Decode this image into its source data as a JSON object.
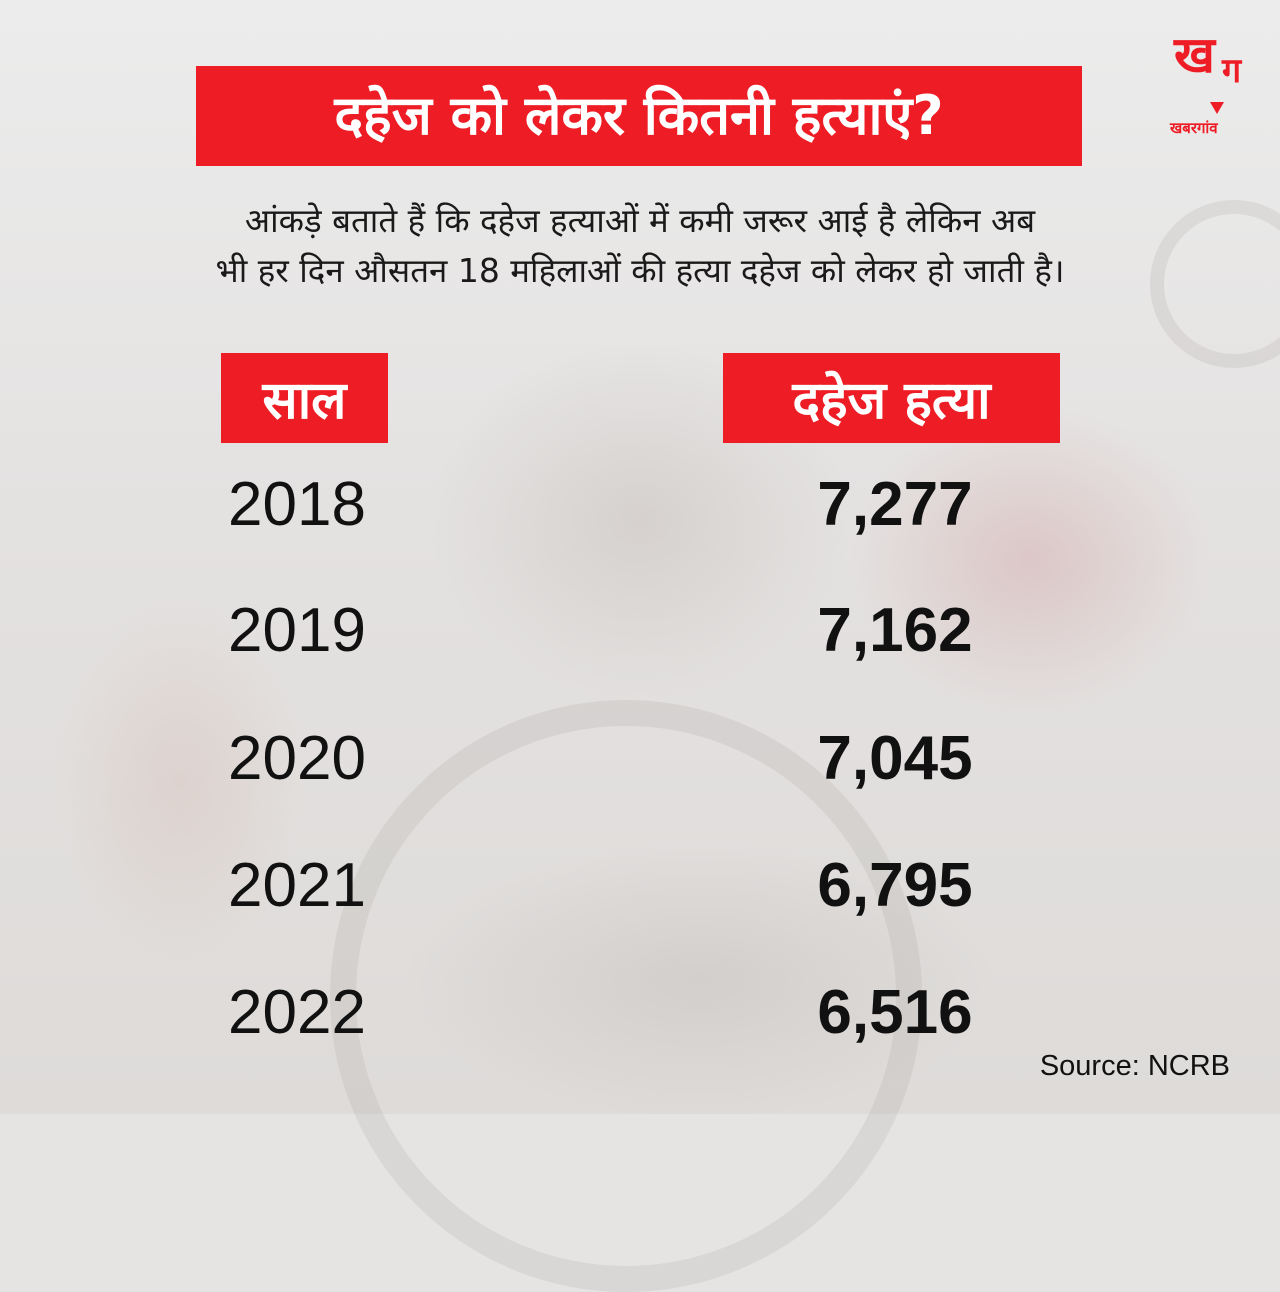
{
  "title": "दहेज को लेकर कितनी हत्याएं?",
  "subtitle_line1": "आंकड़े बताते हैं कि दहेज हत्याओं में कमी जरूर आई है लेकिन अब",
  "subtitle_line2": "भी हर दिन औसतन 18 महिलाओं की हत्या दहेज को लेकर हो जाती है।",
  "logo": {
    "mark_glyph_1": "ख",
    "mark_glyph_2": "ग",
    "name": "खबरगांव"
  },
  "colors": {
    "accent": "#ee1c25",
    "text": "#111111",
    "background": "#e6e4e3"
  },
  "table": {
    "headers": [
      "साल",
      "दहेज हत्या"
    ],
    "rows": [
      {
        "year": "2018",
        "deaths": "7,277"
      },
      {
        "year": "2019",
        "deaths": "7,162"
      },
      {
        "year": "2020",
        "deaths": "7,045"
      },
      {
        "year": "2021",
        "deaths": "6,795"
      },
      {
        "year": "2022",
        "deaths": "6,516"
      }
    ]
  },
  "source": "Source: NCRB"
}
